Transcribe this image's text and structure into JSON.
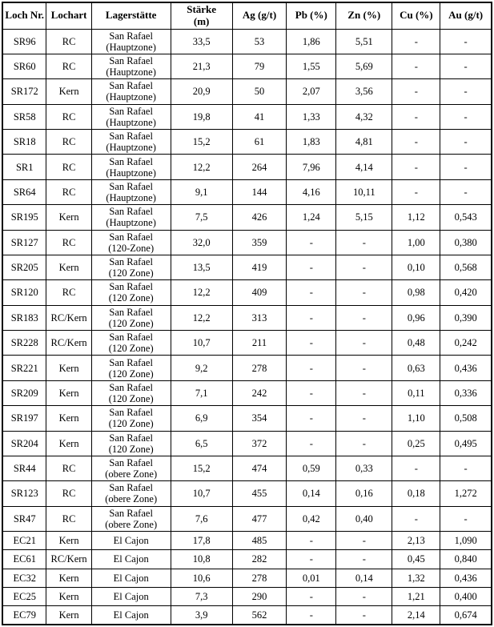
{
  "table": {
    "name": "Bohrergebnisse (drill hole results)",
    "colors": {
      "border": "#000000",
      "text": "#000000",
      "background": "#ffffff"
    },
    "column_keys": [
      "loch_nr",
      "lochart",
      "lagerstaette",
      "staerke_m",
      "ag_gt",
      "pb_pct",
      "zn_pct",
      "cu_pct",
      "au_gt"
    ],
    "headers": [
      "Loch Nr.",
      "Lochart",
      "Lagerstätte",
      "Stärke\n(m)",
      "Ag (g/t)",
      "Pb (%)",
      "Zn (%)",
      "Cu (%)",
      "Au (g/t)"
    ],
    "rows": [
      {
        "tall": true,
        "cells": [
          "SR96",
          "RC",
          "San Rafael\n(Hauptzone)",
          "33,5",
          "53",
          "1,86",
          "5,51",
          "-",
          "-"
        ]
      },
      {
        "tall": true,
        "cells": [
          "SR60",
          "RC",
          "San Rafael\n(Hauptzone)",
          "21,3",
          "79",
          "1,55",
          "5,69",
          "-",
          "-"
        ]
      },
      {
        "tall": true,
        "cells": [
          "SR172",
          "Kern",
          "San Rafael\n(Hauptzone)",
          "20,9",
          "50",
          "2,07",
          "3,56",
          "-",
          "-"
        ]
      },
      {
        "tall": true,
        "cells": [
          "SR58",
          "RC",
          "San Rafael\n(Hauptzone)",
          "19,8",
          "41",
          "1,33",
          "4,32",
          "-",
          "-"
        ]
      },
      {
        "tall": true,
        "cells": [
          "SR18",
          "RC",
          "San Rafael\n(Hauptzone)",
          "15,2",
          "61",
          "1,83",
          "4,81",
          "-",
          "-"
        ]
      },
      {
        "tall": true,
        "cells": [
          "SR1",
          "RC",
          "San Rafael\n(Hauptzone)",
          "12,2",
          "264",
          "7,96",
          "4,14",
          "-",
          "-"
        ]
      },
      {
        "tall": true,
        "cells": [
          "SR64",
          "RC",
          "San Rafael\n(Hauptzone)",
          "9,1",
          "144",
          "4,16",
          "10,11",
          "-",
          "-"
        ]
      },
      {
        "tall": true,
        "cells": [
          "SR195",
          "Kern",
          "San Rafael\n(Hauptzone)",
          "7,5",
          "426",
          "1,24",
          "5,15",
          "1,12",
          "0,543"
        ]
      },
      {
        "tall": true,
        "cells": [
          "SR127",
          "RC",
          "San Rafael\n(120-Zone)",
          "32,0",
          "359",
          "-",
          "-",
          "1,00",
          "0,380"
        ]
      },
      {
        "tall": true,
        "cells": [
          "SR205",
          "Kern",
          "San Rafael\n(120 Zone)",
          "13,5",
          "419",
          "-",
          "-",
          "0,10",
          "0,568"
        ]
      },
      {
        "tall": true,
        "cells": [
          "SR120",
          "RC",
          "San Rafael\n(120 Zone)",
          "12,2",
          "409",
          "-",
          "-",
          "0,98",
          "0,420"
        ]
      },
      {
        "tall": true,
        "cells": [
          "SR183",
          "RC/Kern",
          "San Rafael\n(120 Zone)",
          "12,2",
          "313",
          "-",
          "-",
          "0,96",
          "0,390"
        ]
      },
      {
        "tall": true,
        "cells": [
          "SR228",
          "RC/Kern",
          "San Rafael\n(120 Zone)",
          "10,7",
          "211",
          "-",
          "-",
          "0,48",
          "0,242"
        ]
      },
      {
        "tall": true,
        "cells": [
          "SR221",
          "Kern",
          "San Rafael\n(120 Zone)",
          "9,2",
          "278",
          "-",
          "-",
          "0,63",
          "0,436"
        ]
      },
      {
        "tall": true,
        "cells": [
          "SR209",
          "Kern",
          "San Rafael\n(120 Zone)",
          "7,1",
          "242",
          "-",
          "-",
          "0,11",
          "0,336"
        ]
      },
      {
        "tall": true,
        "cells": [
          "SR197",
          "Kern",
          "San Rafael\n(120 Zone)",
          "6,9",
          "354",
          "-",
          "-",
          "1,10",
          "0,508"
        ]
      },
      {
        "tall": true,
        "cells": [
          "SR204",
          "Kern",
          "San Rafael\n(120 Zone)",
          "6,5",
          "372",
          "-",
          "-",
          "0,25",
          "0,495"
        ]
      },
      {
        "tall": true,
        "cells": [
          "SR44",
          "RC",
          "San Rafael\n(obere Zone)",
          "15,2",
          "474",
          "0,59",
          "0,33",
          "-",
          "-"
        ]
      },
      {
        "tall": true,
        "cells": [
          "SR123",
          "RC",
          "San Rafael\n(obere Zone)",
          "10,7",
          "455",
          "0,14",
          "0,16",
          "0,18",
          "1,272"
        ]
      },
      {
        "tall": true,
        "cells": [
          "SR47",
          "RC",
          "San Rafael\n(obere Zone)",
          "7,6",
          "477",
          "0,42",
          "0,40",
          "-",
          "-"
        ]
      },
      {
        "tall": false,
        "cells": [
          "EC21",
          "Kern",
          "El Cajon",
          "17,8",
          "485",
          "-",
          "-",
          "2,13",
          "1,090"
        ]
      },
      {
        "tall": false,
        "cells": [
          "EC61",
          "RC/Kern",
          "El Cajon",
          "10,8",
          "282",
          "-",
          "-",
          "0,45",
          "0,840"
        ]
      },
      {
        "tall": false,
        "cells": [
          "EC32",
          "Kern",
          "El Cajon",
          "10,6",
          "278",
          "0,01",
          "0,14",
          "1,32",
          "0,436"
        ]
      },
      {
        "tall": false,
        "cells": [
          "EC25",
          "Kern",
          "El Cajon",
          "7,3",
          "290",
          "-",
          "-",
          "1,21",
          "0,400"
        ]
      },
      {
        "tall": false,
        "cells": [
          "EC79",
          "Kern",
          "El Cajon",
          "3,9",
          "562",
          "-",
          "-",
          "2,14",
          "0,674"
        ]
      }
    ]
  }
}
